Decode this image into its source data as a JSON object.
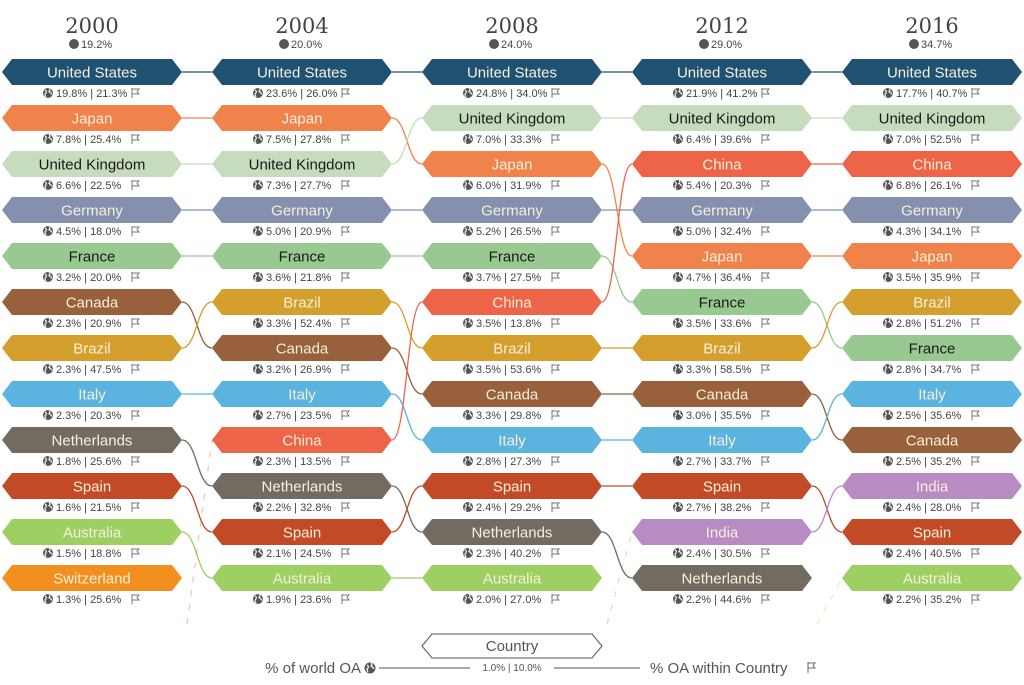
{
  "chart_data": {
    "type": "bump",
    "title": "",
    "legend": {
      "box_label": "Country",
      "left_label": "% of world OA",
      "right_label": "% OA within Country",
      "example": "1.0% | 10.0%",
      "placement": "bottom-center"
    },
    "colors": {
      "United States": "#1f5272",
      "Japan": "#f0824b",
      "United Kingdom": "#c6dcbc",
      "Germany": "#8590ae",
      "France": "#98c990",
      "Canada": "#99603c",
      "Brazil": "#d49f2c",
      "Italy": "#5bb3df",
      "Netherlands": "#736b61",
      "Spain": "#c24a26",
      "Australia": "#9dcf63",
      "Switzerland": "#f2901f",
      "China": "#ee6449",
      "India": "#b98bc3"
    },
    "dark_text": [
      "United Kingdom",
      "France"
    ],
    "years": [
      {
        "year": "2000",
        "world": "19.2%",
        "rows": [
          {
            "country": "United States",
            "world": "19.8%",
            "within": "21.3%"
          },
          {
            "country": "Japan",
            "world": "7.8%",
            "within": "25.4%"
          },
          {
            "country": "United Kingdom",
            "world": "6.6%",
            "within": "22.5%"
          },
          {
            "country": "Germany",
            "world": "4.5%",
            "within": "18.0%"
          },
          {
            "country": "France",
            "world": "3.2%",
            "within": "20.0%"
          },
          {
            "country": "Canada",
            "world": "2.3%",
            "within": "20.9%"
          },
          {
            "country": "Brazil",
            "world": "2.3%",
            "within": "47.5%"
          },
          {
            "country": "Italy",
            "world": "2.3%",
            "within": "20.3%"
          },
          {
            "country": "Netherlands",
            "world": "1.8%",
            "within": "25.6%"
          },
          {
            "country": "Spain",
            "world": "1.6%",
            "within": "21.5%"
          },
          {
            "country": "Australia",
            "world": "1.5%",
            "within": "18.8%"
          },
          {
            "country": "Switzerland",
            "world": "1.3%",
            "within": "25.6%"
          }
        ]
      },
      {
        "year": "2004",
        "world": "20.0%",
        "rows": [
          {
            "country": "United States",
            "world": "23.6%",
            "within": "26.0%"
          },
          {
            "country": "Japan",
            "world": "7.5%",
            "within": "27.8%"
          },
          {
            "country": "United Kingdom",
            "world": "7.3%",
            "within": "27.7%"
          },
          {
            "country": "Germany",
            "world": "5.0%",
            "within": "20.9%"
          },
          {
            "country": "France",
            "world": "3.6%",
            "within": "21.8%"
          },
          {
            "country": "Brazil",
            "world": "3.3%",
            "within": "52.4%"
          },
          {
            "country": "Canada",
            "world": "3.2%",
            "within": "26.9%"
          },
          {
            "country": "Italy",
            "world": "2.7%",
            "within": "23.5%"
          },
          {
            "country": "China",
            "world": "2.3%",
            "within": "13.5%"
          },
          {
            "country": "Netherlands",
            "world": "2.2%",
            "within": "32.8%"
          },
          {
            "country": "Spain",
            "world": "2.1%",
            "within": "24.5%"
          },
          {
            "country": "Australia",
            "world": "1.9%",
            "within": "23.6%"
          }
        ]
      },
      {
        "year": "2008",
        "world": "24.0%",
        "rows": [
          {
            "country": "United States",
            "world": "24.8%",
            "within": "34.0%"
          },
          {
            "country": "United Kingdom",
            "world": "7.0%",
            "within": "33.3%"
          },
          {
            "country": "Japan",
            "world": "6.0%",
            "within": "31.9%"
          },
          {
            "country": "Germany",
            "world": "5.2%",
            "within": "26.5%"
          },
          {
            "country": "France",
            "world": "3.7%",
            "within": "27.5%"
          },
          {
            "country": "China",
            "world": "3.5%",
            "within": "13.8%"
          },
          {
            "country": "Brazil",
            "world": "3.5%",
            "within": "53.6%"
          },
          {
            "country": "Canada",
            "world": "3.3%",
            "within": "29.8%"
          },
          {
            "country": "Italy",
            "world": "2.8%",
            "within": "27.3%"
          },
          {
            "country": "Spain",
            "world": "2.4%",
            "within": "29.2%"
          },
          {
            "country": "Netherlands",
            "world": "2.3%",
            "within": "40.2%"
          },
          {
            "country": "Australia",
            "world": "2.0%",
            "within": "27.0%"
          }
        ]
      },
      {
        "year": "2012",
        "world": "29.0%",
        "rows": [
          {
            "country": "United States",
            "world": "21.9%",
            "within": "41.2%"
          },
          {
            "country": "United Kingdom",
            "world": "6.4%",
            "within": "39.6%"
          },
          {
            "country": "China",
            "world": "5.4%",
            "within": "20.3%"
          },
          {
            "country": "Germany",
            "world": "5.0%",
            "within": "32.4%"
          },
          {
            "country": "Japan",
            "world": "4.7%",
            "within": "36.4%"
          },
          {
            "country": "France",
            "world": "3.5%",
            "within": "33.6%"
          },
          {
            "country": "Brazil",
            "world": "3.3%",
            "within": "58.5%"
          },
          {
            "country": "Canada",
            "world": "3.0%",
            "within": "35.5%"
          },
          {
            "country": "Italy",
            "world": "2.7%",
            "within": "33.7%"
          },
          {
            "country": "Spain",
            "world": "2.7%",
            "within": "38.2%"
          },
          {
            "country": "India",
            "world": "2.4%",
            "within": "30.5%"
          },
          {
            "country": "Netherlands",
            "world": "2.2%",
            "within": "44.6%"
          }
        ]
      },
      {
        "year": "2016",
        "world": "34.7%",
        "rows": [
          {
            "country": "United States",
            "world": "17.7%",
            "within": "40.7%"
          },
          {
            "country": "United Kingdom",
            "world": "7.0%",
            "within": "52.5%"
          },
          {
            "country": "China",
            "world": "6.8%",
            "within": "26.1%"
          },
          {
            "country": "Germany",
            "world": "4.3%",
            "within": "34.1%"
          },
          {
            "country": "Japan",
            "world": "3.5%",
            "within": "35.9%"
          },
          {
            "country": "Brazil",
            "world": "2.8%",
            "within": "51.2%"
          },
          {
            "country": "France",
            "world": "2.8%",
            "within": "34.7%"
          },
          {
            "country": "Italy",
            "world": "2.5%",
            "within": "35.6%"
          },
          {
            "country": "Canada",
            "world": "2.5%",
            "within": "35.2%"
          },
          {
            "country": "India",
            "world": "2.4%",
            "within": "28.0%"
          },
          {
            "country": "Spain",
            "world": "2.4%",
            "within": "40.5%"
          },
          {
            "country": "Australia",
            "world": "2.2%",
            "within": "35.2%"
          }
        ]
      }
    ]
  }
}
